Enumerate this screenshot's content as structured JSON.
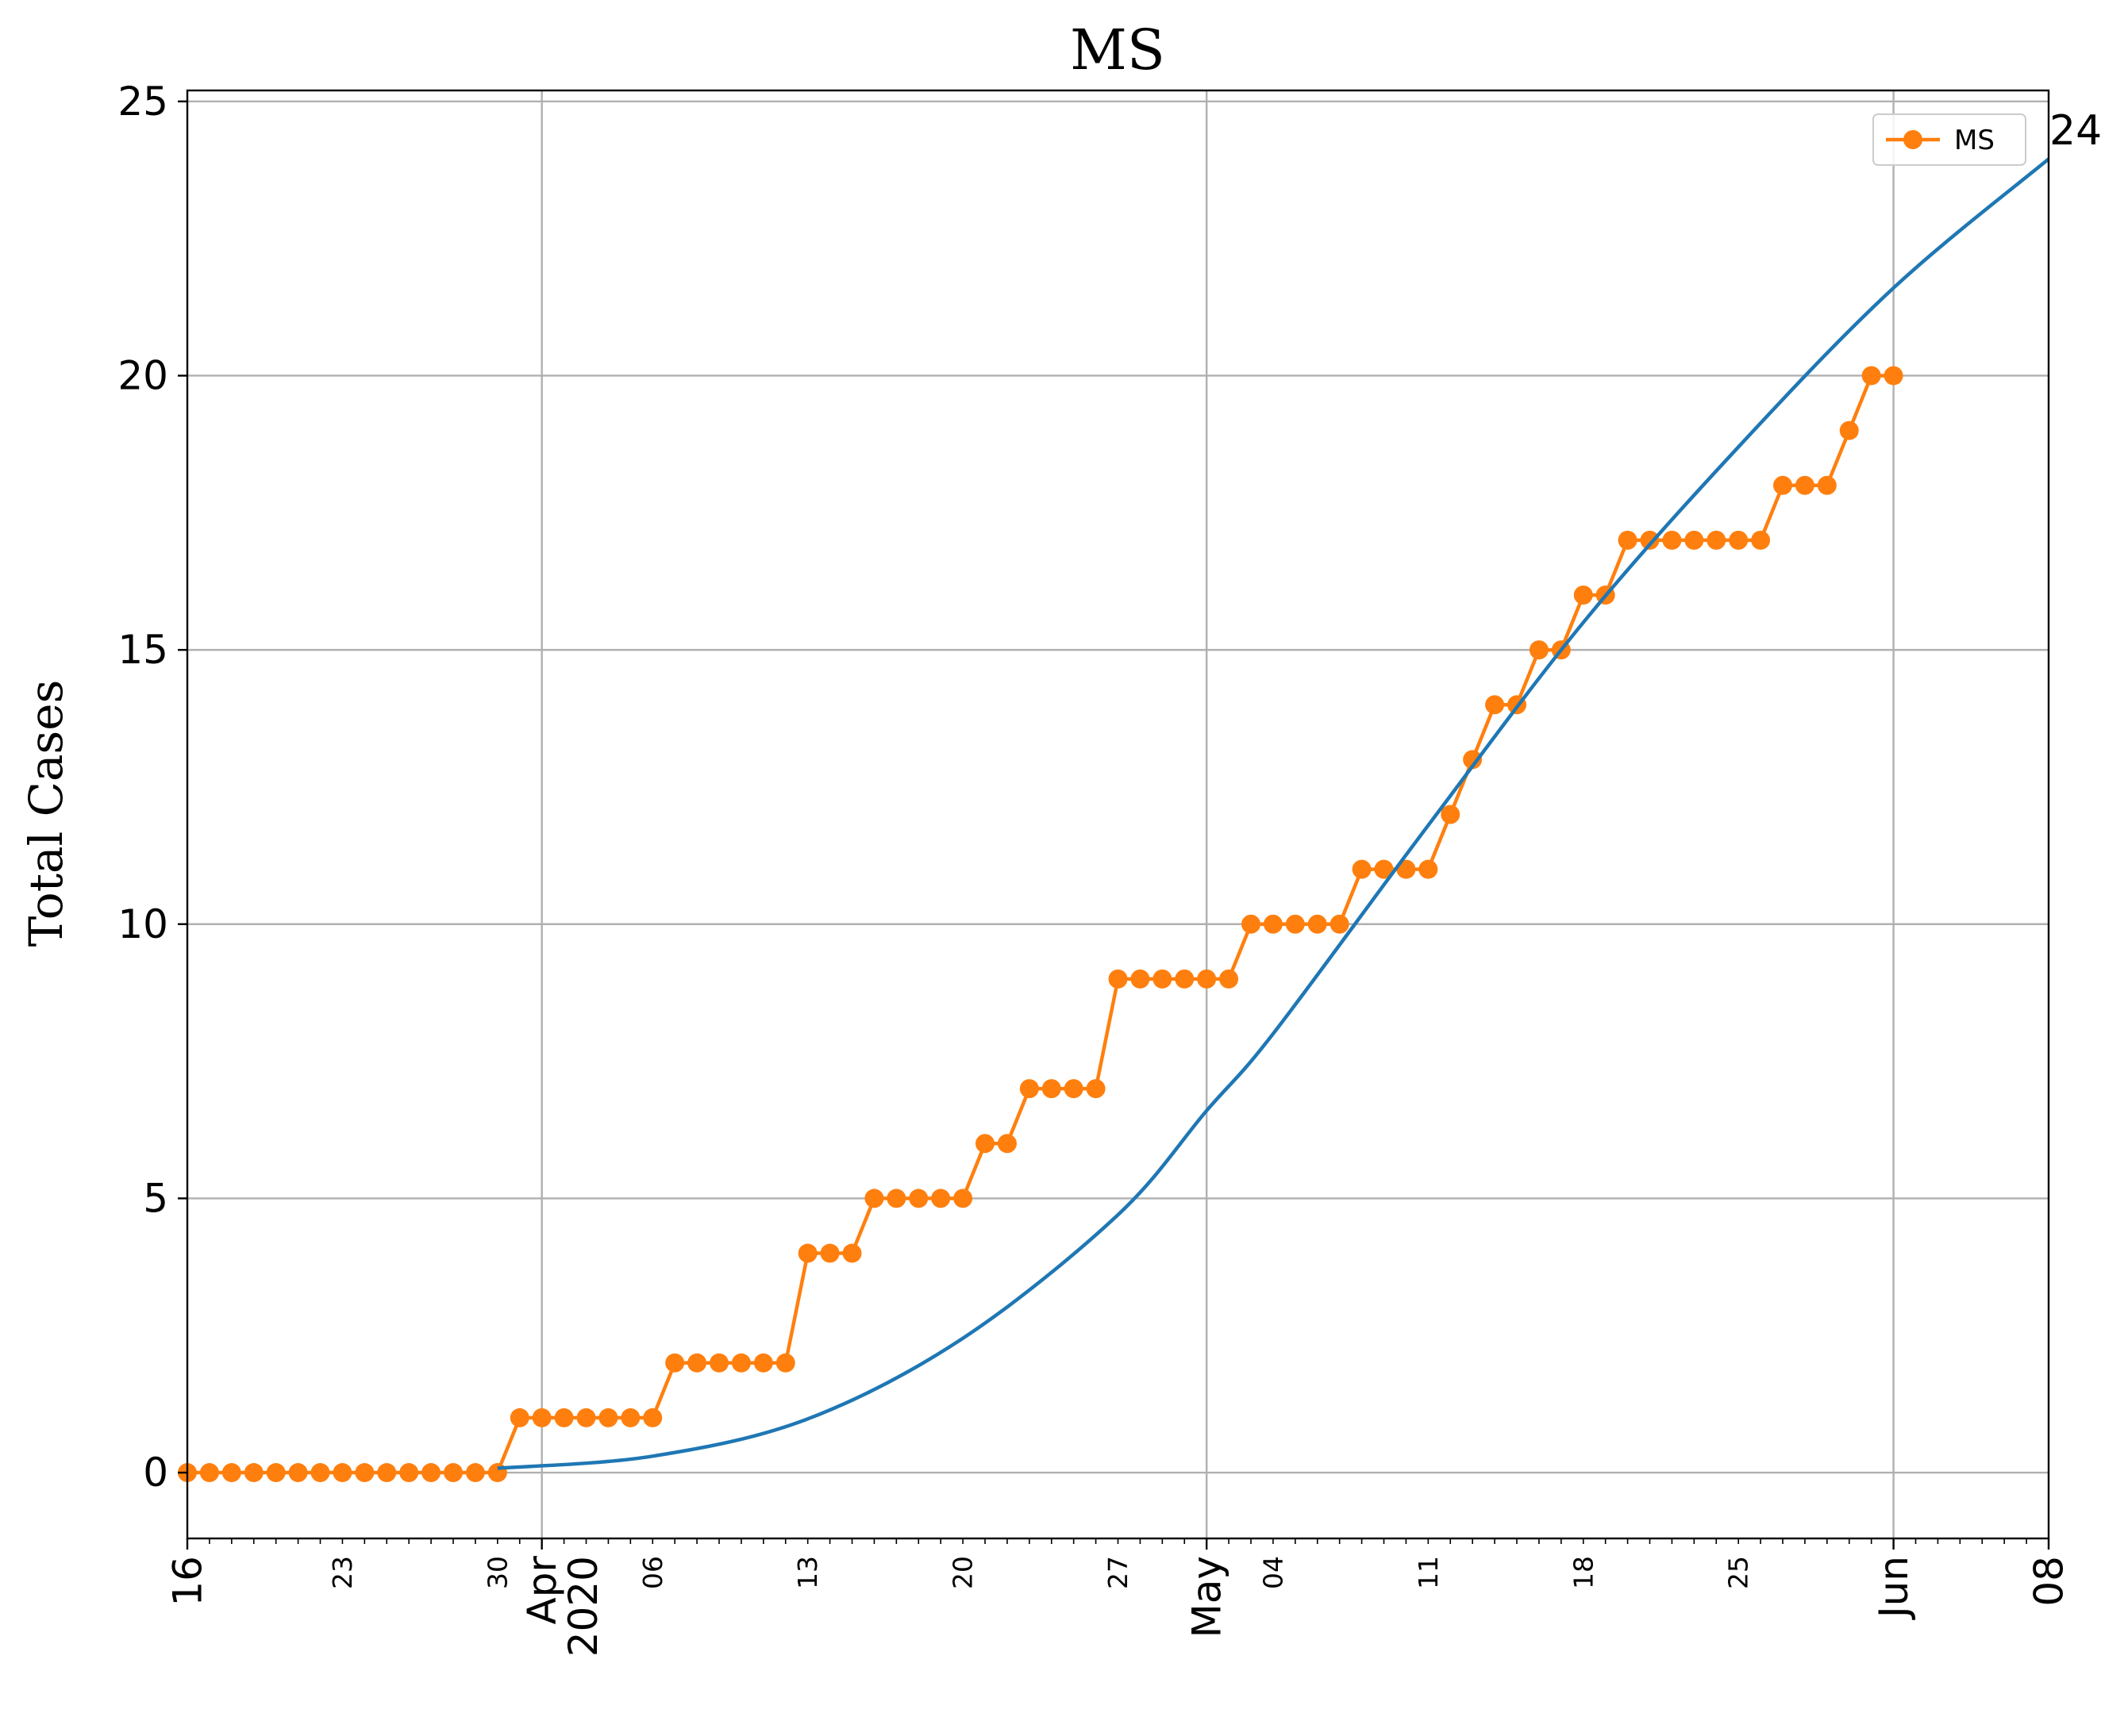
{
  "chart_data": {
    "type": "line",
    "title": "MS",
    "xlabel": "",
    "ylabel": "Total Cases",
    "xlim": [
      "2020-03-16",
      "2020-06-08"
    ],
    "ylim": [
      -1.2,
      25.2
    ],
    "grid": true,
    "legend_position": "top-right",
    "y_ticks": [
      0,
      5,
      10,
      15,
      20,
      25
    ],
    "x_major_ticks": [
      {
        "date": "2020-03-16",
        "label": "16"
      },
      {
        "date": "2020-04-01",
        "label": "Apr\n2020"
      },
      {
        "date": "2020-05-01",
        "label": "May"
      },
      {
        "date": "2020-06-01",
        "label": "Jun"
      },
      {
        "date": "2020-06-08",
        "label": "08"
      }
    ],
    "x_minor_labels": [
      {
        "date": "2020-03-23",
        "label": "23"
      },
      {
        "date": "2020-03-30",
        "label": "30"
      },
      {
        "date": "2020-04-06",
        "label": "06"
      },
      {
        "date": "2020-04-13",
        "label": "13"
      },
      {
        "date": "2020-04-20",
        "label": "20"
      },
      {
        "date": "2020-04-27",
        "label": "27"
      },
      {
        "date": "2020-05-04",
        "label": "04"
      },
      {
        "date": "2020-05-11",
        "label": "11"
      },
      {
        "date": "2020-05-18",
        "label": "18"
      },
      {
        "date": "2020-05-25",
        "label": "25"
      }
    ],
    "series": [
      {
        "name": "MS",
        "color": "#ff7f0e",
        "marker": "circle",
        "start_date": "2020-03-16",
        "values": [
          0,
          0,
          0,
          0,
          0,
          0,
          0,
          0,
          0,
          0,
          0,
          0,
          0,
          0,
          0,
          1,
          1,
          1,
          1,
          1,
          1,
          1,
          2,
          2,
          2,
          2,
          2,
          2,
          4,
          4,
          4,
          5,
          5,
          5,
          5,
          5,
          6,
          6,
          7,
          7,
          7,
          7,
          9,
          9,
          9,
          9,
          9,
          9,
          10,
          10,
          10,
          10,
          10,
          11,
          11,
          11,
          11,
          12,
          13,
          14,
          14,
          15,
          15,
          16,
          16,
          17,
          17,
          17,
          17,
          17,
          17,
          17,
          18,
          18,
          18,
          19,
          20,
          20
        ]
      },
      {
        "color": "#1f77b4",
        "marker": "none",
        "end_label": "24",
        "points": [
          {
            "x": "2020-03-30",
            "y": 0.08
          },
          {
            "x": "2020-04-06",
            "y": 0.3
          },
          {
            "x": "2020-04-13",
            "y": 0.98
          },
          {
            "x": "2020-04-20",
            "y": 2.45
          },
          {
            "x": "2020-04-27",
            "y": 4.7
          },
          {
            "x": "2020-05-01",
            "y": 6.6
          },
          {
            "x": "2020-05-04",
            "y": 8.0
          },
          {
            "x": "2020-05-11",
            "y": 11.8
          },
          {
            "x": "2020-05-18",
            "y": 15.5
          },
          {
            "x": "2020-05-25",
            "y": 18.7
          },
          {
            "x": "2020-06-01",
            "y": 21.6
          },
          {
            "x": "2020-06-08",
            "y": 23.95
          }
        ]
      }
    ]
  }
}
